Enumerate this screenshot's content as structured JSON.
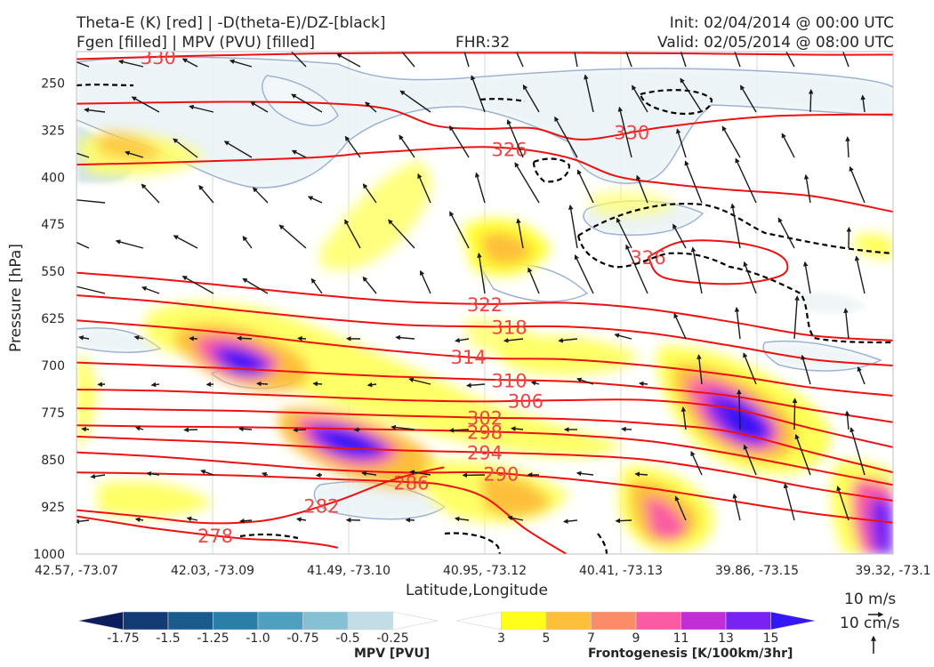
{
  "header": {
    "title_line1": "Theta-E (K) [red] | -D(theta-E)/DZ-[black]",
    "title_line2": "Fgen [filled] | MPV (PVU) [filled]",
    "fhr": "FHR:32",
    "init": "Init: 02/04/2014 @ 00:00 UTC",
    "valid": "Valid: 02/05/2014 @ 08:00 UTC"
  },
  "chart_data": {
    "type": "cross-section",
    "xlabel": "Latitude,Longitude",
    "ylabel": "Pressure [hPa]",
    "x_ticks": [
      "42.57, -73.07",
      "42.03, -73.09",
      "41.49, -73.10",
      "40.95, -73.12",
      "40.41, -73.13",
      "39.86, -73.15",
      "39.32, -73.1"
    ],
    "y_ticks": [
      250,
      325,
      400,
      475,
      550,
      625,
      700,
      775,
      850,
      925,
      1000
    ],
    "ylim": [
      1000,
      200
    ],
    "y_scale": "linear, inverted",
    "theta_e_contours": [
      {
        "label": "330",
        "points": [
          [
            0.0,
            212
          ],
          [
            0.14,
            207
          ],
          [
            0.3,
            203
          ],
          [
            0.45,
            202
          ],
          [
            0.6,
            202
          ],
          [
            0.75,
            203
          ],
          [
            0.9,
            205
          ],
          [
            1.0,
            205
          ]
        ]
      },
      {
        "label": "330",
        "points": [
          [
            0.0,
            283
          ],
          [
            0.1,
            281
          ],
          [
            0.2,
            280
          ],
          [
            0.3,
            282
          ],
          [
            0.38,
            291
          ],
          [
            0.44,
            318
          ],
          [
            0.5,
            323
          ],
          [
            0.56,
            322
          ],
          [
            0.62,
            340
          ],
          [
            0.72,
            320
          ],
          [
            0.85,
            303
          ],
          [
            1.0,
            300
          ]
        ]
      },
      {
        "label": "326",
        "points": [
          [
            0.0,
            380
          ],
          [
            0.1,
            377
          ],
          [
            0.2,
            373
          ],
          [
            0.3,
            368
          ],
          [
            0.35,
            362
          ],
          [
            0.4,
            358
          ],
          [
            0.45,
            354
          ],
          [
            0.5,
            352
          ],
          [
            0.56,
            358
          ],
          [
            0.61,
            372
          ],
          [
            0.66,
            398
          ],
          [
            0.72,
            410
          ],
          [
            0.8,
            420
          ],
          [
            0.9,
            430
          ],
          [
            1.0,
            455
          ]
        ]
      },
      {
        "label": "326",
        "points": [
          [
            0.7,
            527
          ],
          [
            0.74,
            503
          ],
          [
            0.8,
            503
          ],
          [
            0.85,
            517
          ],
          [
            0.87,
            537
          ],
          [
            0.86,
            558
          ],
          [
            0.8,
            570
          ],
          [
            0.72,
            560
          ],
          [
            0.7,
            527
          ]
        ]
      },
      {
        "label": "322",
        "points": [
          [
            0.0,
            552
          ],
          [
            0.1,
            562
          ],
          [
            0.2,
            575
          ],
          [
            0.3,
            588
          ],
          [
            0.4,
            598
          ],
          [
            0.5,
            602
          ],
          [
            0.6,
            600
          ],
          [
            0.7,
            610
          ],
          [
            0.8,
            630
          ],
          [
            0.9,
            652
          ],
          [
            1.0,
            660
          ]
        ]
      },
      {
        "label": "318",
        "points": [
          [
            0.0,
            588
          ],
          [
            0.1,
            598
          ],
          [
            0.2,
            612
          ],
          [
            0.3,
            625
          ],
          [
            0.4,
            635
          ],
          [
            0.5,
            638
          ],
          [
            0.6,
            638
          ],
          [
            0.7,
            648
          ],
          [
            0.8,
            668
          ],
          [
            0.9,
            690
          ],
          [
            1.0,
            700
          ]
        ]
      },
      {
        "label": "314",
        "points": [
          [
            0.0,
            628
          ],
          [
            0.1,
            638
          ],
          [
            0.2,
            650
          ],
          [
            0.3,
            665
          ],
          [
            0.4,
            678
          ],
          [
            0.5,
            688
          ],
          [
            0.6,
            690
          ],
          [
            0.7,
            700
          ],
          [
            0.8,
            715
          ],
          [
            0.9,
            735
          ],
          [
            1.0,
            748
          ]
        ]
      },
      {
        "label": "310",
        "points": [
          [
            0.0,
            695
          ],
          [
            0.1,
            700
          ],
          [
            0.2,
            705
          ],
          [
            0.3,
            712
          ],
          [
            0.4,
            718
          ],
          [
            0.5,
            722
          ],
          [
            0.6,
            725
          ],
          [
            0.7,
            735
          ],
          [
            0.8,
            748
          ],
          [
            0.9,
            770
          ],
          [
            1.0,
            790
          ]
        ]
      },
      {
        "label": "306",
        "points": [
          [
            0.0,
            738
          ],
          [
            0.1,
            740
          ],
          [
            0.2,
            745
          ],
          [
            0.3,
            750
          ],
          [
            0.4,
            755
          ],
          [
            0.5,
            757
          ],
          [
            0.6,
            755
          ],
          [
            0.7,
            755
          ],
          [
            0.8,
            768
          ],
          [
            0.9,
            800
          ],
          [
            1.0,
            830
          ]
        ]
      },
      {
        "label": "302",
        "points": [
          [
            0.0,
            768
          ],
          [
            0.1,
            770
          ],
          [
            0.2,
            772
          ],
          [
            0.3,
            776
          ],
          [
            0.4,
            780
          ],
          [
            0.5,
            783
          ],
          [
            0.6,
            785
          ],
          [
            0.7,
            792
          ],
          [
            0.8,
            805
          ],
          [
            0.9,
            838
          ],
          [
            1.0,
            870
          ]
        ]
      },
      {
        "label": "298",
        "points": [
          [
            0.0,
            795
          ],
          [
            0.1,
            797
          ],
          [
            0.2,
            798
          ],
          [
            0.3,
            800
          ],
          [
            0.4,
            802
          ],
          [
            0.5,
            805
          ],
          [
            0.6,
            810
          ],
          [
            0.7,
            820
          ],
          [
            0.8,
            840
          ],
          [
            0.9,
            865
          ],
          [
            1.0,
            890
          ]
        ]
      },
      {
        "label": "294",
        "points": [
          [
            0.0,
            813
          ],
          [
            0.1,
            818
          ],
          [
            0.2,
            823
          ],
          [
            0.3,
            830
          ],
          [
            0.4,
            835
          ],
          [
            0.5,
            838
          ],
          [
            0.6,
            842
          ],
          [
            0.7,
            850
          ],
          [
            0.8,
            870
          ],
          [
            0.9,
            895
          ],
          [
            1.0,
            915
          ]
        ]
      },
      {
        "label": "290",
        "points": [
          [
            0.0,
            838
          ],
          [
            0.1,
            845
          ],
          [
            0.2,
            855
          ],
          [
            0.3,
            865
          ],
          [
            0.4,
            870
          ],
          [
            0.5,
            870
          ],
          [
            0.55,
            875
          ],
          [
            0.6,
            880
          ],
          [
            0.7,
            895
          ],
          [
            0.8,
            915
          ],
          [
            0.9,
            935
          ],
          [
            1.0,
            950
          ]
        ]
      },
      {
        "label": "286",
        "points": [
          [
            0.0,
            870
          ],
          [
            0.1,
            872
          ],
          [
            0.2,
            875
          ],
          [
            0.3,
            880
          ],
          [
            0.4,
            885
          ],
          [
            0.45,
            890
          ],
          [
            0.5,
            910
          ],
          [
            0.55,
            960
          ],
          [
            0.6,
            1000
          ]
        ]
      },
      {
        "label": "282",
        "points": [
          [
            0.0,
            930
          ],
          [
            0.08,
            940
          ],
          [
            0.15,
            950
          ],
          [
            0.2,
            950
          ],
          [
            0.25,
            942
          ],
          [
            0.32,
            915
          ],
          [
            0.38,
            885
          ],
          [
            0.42,
            870
          ],
          [
            0.45,
            862
          ]
        ]
      },
      {
        "label": "278",
        "points": [
          [
            0.0,
            940
          ],
          [
            0.05,
            950
          ],
          [
            0.1,
            960
          ],
          [
            0.2,
            975
          ],
          [
            0.25,
            978
          ],
          [
            0.3,
            985
          ],
          [
            0.32,
            990
          ]
        ]
      }
    ],
    "mpv_colorbar": {
      "title": "MPV [PVU]",
      "tick_labels": [
        "-1.75",
        "-1.5",
        "-1.25",
        "-1.0",
        "-0.75",
        "-0.5",
        "-0.25"
      ],
      "colors": [
        "#0b1d5c",
        "#123a75",
        "#1b5a8c",
        "#2b7ea8",
        "#4f9fc0",
        "#86c0d4",
        "#c2dde6",
        "#ffffff"
      ]
    },
    "fgen_colorbar": {
      "title": "Frontogenesis [K/100km/3hr]",
      "tick_labels": [
        "3",
        "5",
        "7",
        "9",
        "11",
        "13",
        "15"
      ],
      "colors": [
        "#ffffff",
        "#ffff1a",
        "#fdbf3a",
        "#fb8c68",
        "#fa5ba3",
        "#c02ed6",
        "#7a22f2",
        "#3317f5"
      ]
    }
  },
  "reference_vectors": {
    "horizontal": "10 m/s",
    "vertical": "10 cm/s"
  }
}
